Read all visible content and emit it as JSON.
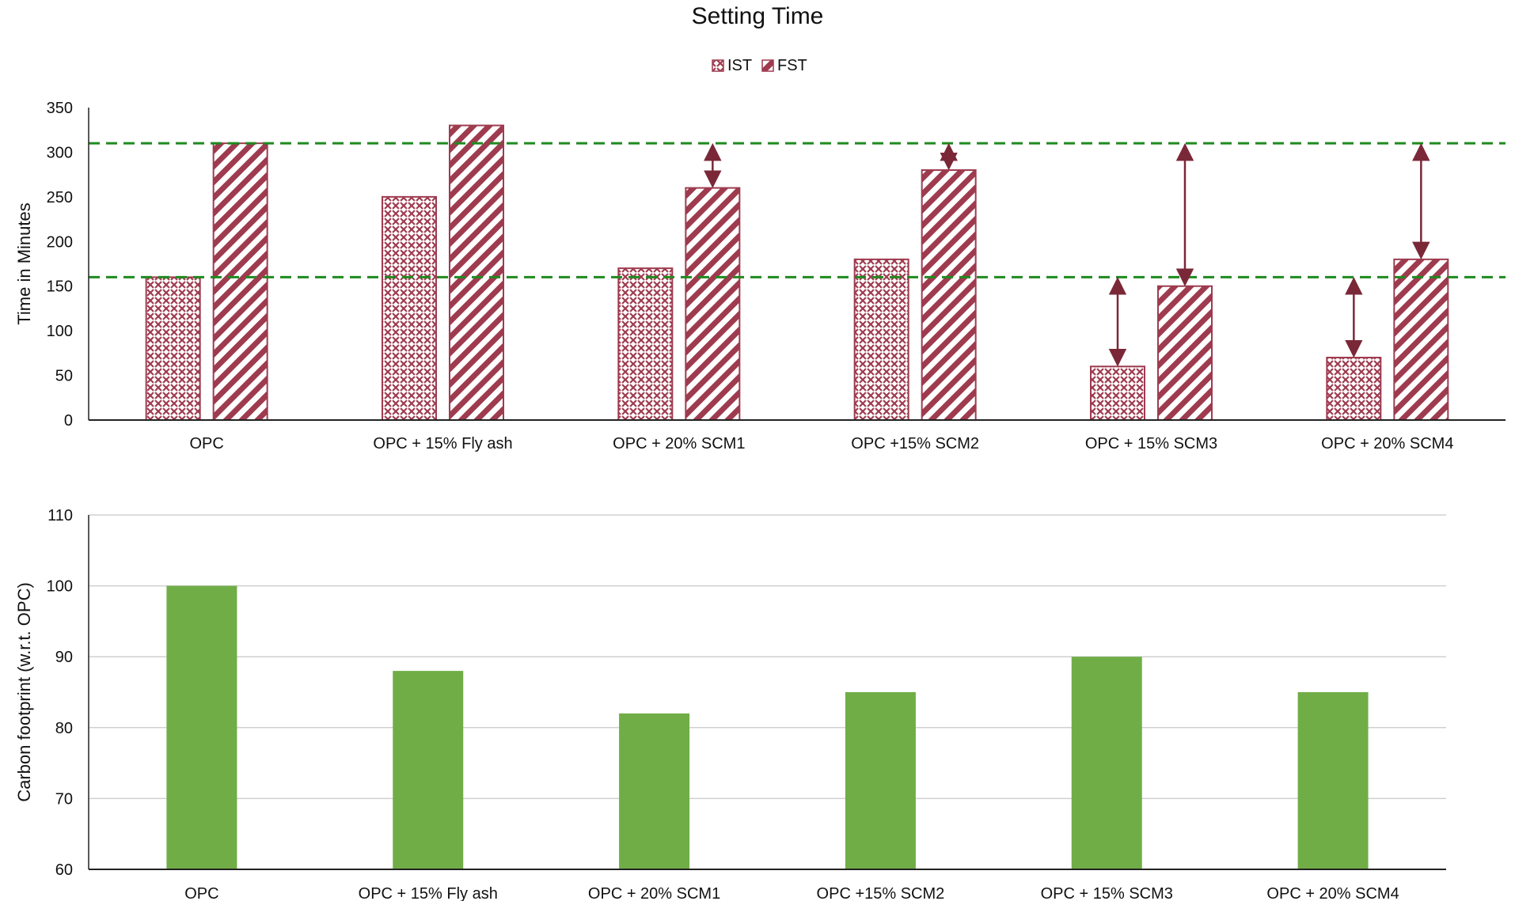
{
  "chart_data": [
    {
      "type": "bar",
      "title": "Setting Time",
      "xlabel": "",
      "ylabel": "Time in Minutes",
      "categories": [
        "OPC",
        "OPC + 15% Fly ash",
        "OPC + 20% SCM1",
        "OPC +15% SCM2",
        "OPC + 15% SCM3",
        "OPC + 20% SCM4"
      ],
      "series": [
        {
          "name": "IST",
          "values": [
            160,
            250,
            170,
            180,
            60,
            70
          ],
          "color": "#9e3b4f",
          "pattern": "crosshatch"
        },
        {
          "name": "FST",
          "values": [
            310,
            330,
            260,
            280,
            150,
            180
          ],
          "color": "#9e3b4f",
          "pattern": "diagonal-stripes"
        }
      ],
      "ylim": [
        0,
        350
      ],
      "yticks": [
        0,
        50,
        100,
        150,
        200,
        250,
        300,
        350
      ],
      "grid": false,
      "legend": "top-center",
      "reference_lines": [
        {
          "value": 310,
          "color": "#1f8a1f",
          "style": "dashed"
        },
        {
          "value": 160,
          "color": "#1f8a1f",
          "style": "dashed"
        }
      ],
      "annotations": [
        {
          "type": "double-arrow",
          "category": "OPC + 20% SCM1",
          "series": "FST",
          "from": 260,
          "to": 310
        },
        {
          "type": "double-arrow",
          "category": "OPC +15% SCM2",
          "series": "FST",
          "from": 280,
          "to": 310
        },
        {
          "type": "double-arrow",
          "category": "OPC + 15% SCM3",
          "series": "IST",
          "from": 60,
          "to": 160
        },
        {
          "type": "double-arrow",
          "category": "OPC + 15% SCM3",
          "series": "FST",
          "from": 150,
          "to": 310
        },
        {
          "type": "double-arrow",
          "category": "OPC + 20% SCM4",
          "series": "IST",
          "from": 70,
          "to": 160
        },
        {
          "type": "double-arrow",
          "category": "OPC + 20% SCM4",
          "series": "FST",
          "from": 180,
          "to": 310
        }
      ],
      "annotation_color": "#7a2838"
    },
    {
      "type": "bar",
      "title": "",
      "xlabel": "",
      "ylabel": "Carbon footprint (w.r.t. OPC)",
      "categories": [
        "OPC",
        "OPC + 15% Fly ash",
        "OPC + 20% SCM1",
        "OPC +15% SCM2",
        "OPC + 15% SCM3",
        "OPC + 20% SCM4"
      ],
      "values": [
        100,
        88,
        82,
        85,
        90,
        85
      ],
      "color": "#70ad47",
      "ylim": [
        60,
        110
      ],
      "yticks": [
        60,
        70,
        80,
        90,
        100,
        110
      ],
      "grid": true,
      "legend": "none"
    }
  ]
}
